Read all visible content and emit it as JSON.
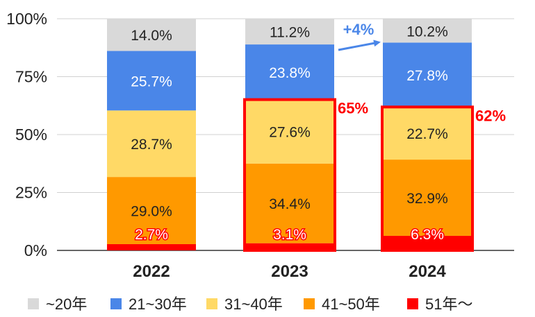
{
  "chart_data": {
    "type": "bar",
    "stacked": true,
    "title": "",
    "xlabel": "",
    "ylabel": "",
    "ylim": [
      0,
      100
    ],
    "y_ticks": [
      "0%",
      "25%",
      "50%",
      "75%",
      "100%"
    ],
    "categories": [
      "2022",
      "2023",
      "2024"
    ],
    "series": [
      {
        "name": "51年～",
        "color": "#ff0000",
        "values": [
          2.7,
          3.1,
          6.3
        ],
        "labels": [
          "2.7%",
          "3.1%",
          "6.3%"
        ]
      },
      {
        "name": "41~50年",
        "color": "#ff9900",
        "values": [
          29.0,
          34.4,
          32.9
        ],
        "labels": [
          "29.0%",
          "34.4%",
          "32.9%"
        ]
      },
      {
        "name": "31~40年",
        "color": "#ffd966",
        "values": [
          28.7,
          27.6,
          22.7
        ],
        "labels": [
          "28.7%",
          "27.6%",
          "22.7%"
        ]
      },
      {
        "name": "21~30年",
        "color": "#4a86e8",
        "values": [
          25.7,
          23.8,
          27.8
        ],
        "labels": [
          "25.7%",
          "23.8%",
          "27.8%"
        ]
      },
      {
        "name": "~20年",
        "color": "#d9d9d9",
        "values": [
          14.0,
          11.2,
          10.2
        ],
        "labels": [
          "14.0%",
          "11.2%",
          "10.2%"
        ]
      }
    ],
    "legend": {
      "placement": "bottom",
      "items": [
        {
          "name": "~20年",
          "color": "#d9d9d9"
        },
        {
          "name": "21~30年",
          "color": "#4a86e8"
        },
        {
          "name": "31~40年",
          "color": "#ffd966"
        },
        {
          "name": "41~50年",
          "color": "#ff9900"
        },
        {
          "name": "51年～",
          "color": "#ff0000"
        }
      ]
    },
    "annotations": {
      "highlight_boxes": [
        {
          "category": "2023",
          "from": 0,
          "to": 65.1,
          "label": "65%",
          "color": "#ff0000"
        },
        {
          "category": "2024",
          "from": 0,
          "to": 61.9,
          "label": "62%",
          "color": "#ff0000"
        }
      ],
      "arrow": {
        "from_category": "2023",
        "to_category": "2024",
        "label": "+4%",
        "color": "#4a86e8"
      }
    },
    "grid": true
  }
}
